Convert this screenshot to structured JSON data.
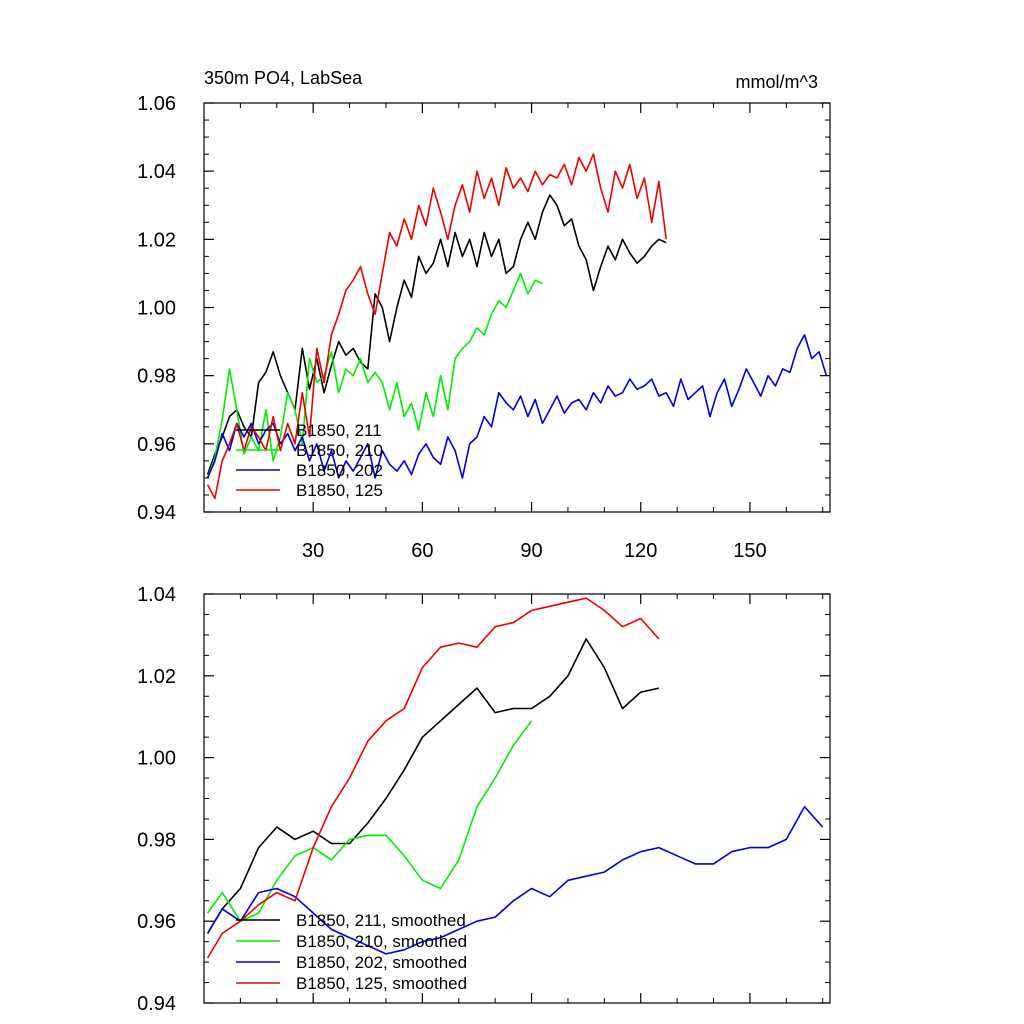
{
  "chart_data": [
    {
      "type": "line",
      "title": "350m PO4, LabSea",
      "units": "mmol/m^3",
      "xlim": [
        0,
        172
      ],
      "ylim": [
        0.94,
        1.06
      ],
      "xticks": [
        30,
        60,
        90,
        120,
        150
      ],
      "xtick_labels": [
        "30",
        "60",
        "90",
        "120",
        "150"
      ],
      "yticks": [
        0.94,
        0.96,
        0.98,
        1.0,
        1.02,
        1.04,
        1.06
      ],
      "ytick_labels": [
        "0.94",
        "0.96",
        "0.98",
        "1.00",
        "1.02",
        "1.04",
        "1.06"
      ],
      "legend_position": "lower-left",
      "series": [
        {
          "name": "B1850, 211",
          "color": "#000000",
          "x": [
            1,
            3,
            5,
            7,
            9,
            11,
            13,
            15,
            17,
            19,
            21,
            23,
            25,
            27,
            29,
            31,
            33,
            35,
            37,
            39,
            41,
            43,
            45,
            47,
            49,
            51,
            53,
            55,
            57,
            59,
            61,
            63,
            65,
            67,
            69,
            71,
            73,
            75,
            77,
            79,
            81,
            83,
            85,
            87,
            89,
            91,
            93,
            95,
            97,
            99,
            101,
            103,
            105,
            107,
            109,
            111,
            113,
            115,
            117,
            119,
            121,
            123,
            125,
            127
          ],
          "y": [
            0.951,
            0.957,
            0.962,
            0.968,
            0.97,
            0.965,
            0.962,
            0.978,
            0.981,
            0.987,
            0.98,
            0.975,
            0.97,
            0.988,
            0.976,
            0.985,
            0.975,
            0.983,
            0.99,
            0.986,
            0.988,
            0.984,
            0.982,
            1.004,
            1.0,
            0.99,
            1.0,
            1.008,
            1.003,
            1.015,
            1.01,
            1.013,
            1.02,
            1.012,
            1.022,
            1.015,
            1.02,
            1.012,
            1.022,
            1.015,
            1.02,
            1.01,
            1.012,
            1.02,
            1.025,
            1.02,
            1.028,
            1.033,
            1.03,
            1.024,
            1.026,
            1.018,
            1.014,
            1.005,
            1.012,
            1.018,
            1.014,
            1.02,
            1.016,
            1.013,
            1.015,
            1.018,
            1.02,
            1.019
          ]
        },
        {
          "name": "B1850, 210",
          "color": "#00ee00",
          "x": [
            1,
            3,
            5,
            7,
            9,
            11,
            13,
            15,
            17,
            19,
            21,
            23,
            25,
            27,
            29,
            31,
            33,
            35,
            37,
            39,
            41,
            43,
            45,
            47,
            49,
            51,
            53,
            55,
            57,
            59,
            61,
            63,
            65,
            67,
            69,
            71,
            73,
            75,
            77,
            79,
            81,
            83,
            85,
            87,
            89,
            91,
            93
          ],
          "y": [
            0.95,
            0.956,
            0.967,
            0.982,
            0.97,
            0.957,
            0.962,
            0.958,
            0.97,
            0.955,
            0.962,
            0.975,
            0.97,
            0.96,
            0.985,
            0.978,
            0.98,
            0.987,
            0.975,
            0.982,
            0.98,
            0.985,
            0.978,
            0.981,
            0.978,
            0.97,
            0.978,
            0.968,
            0.972,
            0.964,
            0.975,
            0.968,
            0.98,
            0.97,
            0.985,
            0.988,
            0.99,
            0.994,
            0.992,
            0.998,
            1.002,
            1.0,
            1.005,
            1.01,
            1.004,
            1.008,
            1.007
          ]
        },
        {
          "name": "B1850, 202",
          "color": "#0000dd",
          "x": [
            1,
            3,
            5,
            7,
            9,
            11,
            13,
            15,
            17,
            19,
            21,
            23,
            25,
            27,
            29,
            31,
            33,
            35,
            37,
            39,
            41,
            43,
            45,
            47,
            49,
            51,
            53,
            55,
            57,
            59,
            61,
            63,
            65,
            67,
            69,
            71,
            73,
            75,
            77,
            79,
            81,
            83,
            85,
            87,
            89,
            91,
            93,
            95,
            97,
            99,
            101,
            103,
            105,
            107,
            109,
            111,
            113,
            115,
            117,
            119,
            121,
            123,
            125,
            127,
            129,
            131,
            133,
            135,
            137,
            139,
            141,
            143,
            145,
            147,
            149,
            151,
            153,
            155,
            157,
            159,
            161,
            163,
            165,
            167,
            169,
            171
          ],
          "y": [
            0.95,
            0.955,
            0.963,
            0.958,
            0.966,
            0.962,
            0.966,
            0.96,
            0.964,
            0.966,
            0.96,
            0.963,
            0.958,
            0.962,
            0.955,
            0.96,
            0.952,
            0.958,
            0.95,
            0.955,
            0.952,
            0.956,
            0.96,
            0.95,
            0.958,
            0.954,
            0.952,
            0.955,
            0.951,
            0.957,
            0.96,
            0.956,
            0.954,
            0.962,
            0.958,
            0.95,
            0.96,
            0.962,
            0.968,
            0.965,
            0.975,
            0.972,
            0.97,
            0.974,
            0.968,
            0.973,
            0.966,
            0.97,
            0.974,
            0.969,
            0.972,
            0.973,
            0.97,
            0.975,
            0.972,
            0.977,
            0.974,
            0.975,
            0.979,
            0.976,
            0.977,
            0.979,
            0.974,
            0.975,
            0.971,
            0.979,
            0.973,
            0.975,
            0.977,
            0.968,
            0.975,
            0.979,
            0.971,
            0.976,
            0.982,
            0.978,
            0.974,
            0.98,
            0.977,
            0.982,
            0.981,
            0.988,
            0.992,
            0.985,
            0.987,
            0.98
          ]
        },
        {
          "name": "B1850, 125",
          "color": "#ee0000",
          "x": [
            1,
            3,
            5,
            7,
            9,
            11,
            13,
            15,
            17,
            19,
            21,
            23,
            25,
            27,
            29,
            31,
            33,
            35,
            37,
            39,
            41,
            43,
            45,
            47,
            49,
            51,
            53,
            55,
            57,
            59,
            61,
            63,
            65,
            67,
            69,
            71,
            73,
            75,
            77,
            79,
            81,
            83,
            85,
            87,
            89,
            91,
            93,
            95,
            97,
            99,
            101,
            103,
            105,
            107,
            109,
            111,
            113,
            115,
            117,
            119,
            121,
            123,
            125,
            127
          ],
          "y": [
            0.948,
            0.944,
            0.955,
            0.96,
            0.966,
            0.958,
            0.965,
            0.962,
            0.958,
            0.968,
            0.958,
            0.966,
            0.96,
            0.975,
            0.962,
            0.988,
            0.978,
            0.992,
            0.998,
            1.005,
            1.008,
            1.012,
            1.004,
            0.998,
            1.01,
            1.022,
            1.018,
            1.026,
            1.02,
            1.03,
            1.024,
            1.035,
            1.028,
            1.02,
            1.03,
            1.036,
            1.028,
            1.04,
            1.032,
            1.038,
            1.03,
            1.041,
            1.035,
            1.038,
            1.034,
            1.04,
            1.036,
            1.039,
            1.038,
            1.042,
            1.036,
            1.044,
            1.04,
            1.045,
            1.035,
            1.028,
            1.04,
            1.035,
            1.042,
            1.032,
            1.038,
            1.025,
            1.037,
            1.02
          ]
        }
      ]
    },
    {
      "type": "line",
      "xlim": [
        0,
        172
      ],
      "ylim": [
        0.94,
        1.04
      ],
      "xticks": [
        30,
        60,
        90,
        120,
        150
      ],
      "yticks": [
        0.94,
        0.96,
        0.98,
        1.0,
        1.02,
        1.04
      ],
      "ytick_labels": [
        "0.94",
        "0.96",
        "0.98",
        "1.00",
        "1.02",
        "1.04"
      ],
      "legend_position": "lower-left",
      "series": [
        {
          "name": "B1850, 211, smoothed",
          "color": "#000000",
          "x": [
            1,
            5,
            10,
            15,
            20,
            25,
            30,
            35,
            40,
            45,
            50,
            55,
            60,
            65,
            70,
            75,
            80,
            85,
            90,
            95,
            100,
            105,
            110,
            115,
            120,
            125
          ],
          "y": [
            0.957,
            0.963,
            0.968,
            0.978,
            0.983,
            0.98,
            0.982,
            0.979,
            0.979,
            0.984,
            0.99,
            0.997,
            1.005,
            1.009,
            1.013,
            1.017,
            1.011,
            1.012,
            1.012,
            1.015,
            1.02,
            1.029,
            1.022,
            1.012,
            1.016,
            1.017
          ]
        },
        {
          "name": "B1850, 210, smoothed",
          "color": "#00ee00",
          "x": [
            1,
            5,
            10,
            15,
            20,
            25,
            30,
            35,
            40,
            45,
            50,
            55,
            60,
            65,
            70,
            75,
            80,
            85,
            90
          ],
          "y": [
            0.962,
            0.967,
            0.96,
            0.962,
            0.97,
            0.976,
            0.978,
            0.975,
            0.98,
            0.981,
            0.981,
            0.976,
            0.97,
            0.968,
            0.975,
            0.988,
            0.995,
            1.003,
            1.009
          ]
        },
        {
          "name": "B1850, 202, smoothed",
          "color": "#0000dd",
          "x": [
            1,
            5,
            10,
            15,
            20,
            25,
            30,
            35,
            40,
            45,
            50,
            55,
            60,
            65,
            70,
            75,
            80,
            85,
            90,
            95,
            100,
            105,
            110,
            115,
            120,
            125,
            130,
            135,
            140,
            145,
            150,
            155,
            160,
            165,
            170
          ],
          "y": [
            0.957,
            0.963,
            0.96,
            0.967,
            0.968,
            0.966,
            0.962,
            0.958,
            0.956,
            0.954,
            0.952,
            0.953,
            0.955,
            0.956,
            0.958,
            0.96,
            0.961,
            0.965,
            0.968,
            0.966,
            0.97,
            0.971,
            0.972,
            0.975,
            0.977,
            0.978,
            0.976,
            0.974,
            0.974,
            0.977,
            0.978,
            0.978,
            0.98,
            0.988,
            0.983
          ]
        },
        {
          "name": "B1850, 125, smoothed",
          "color": "#ee0000",
          "x": [
            1,
            5,
            10,
            15,
            20,
            25,
            30,
            35,
            40,
            45,
            50,
            55,
            60,
            65,
            70,
            75,
            80,
            85,
            90,
            95,
            100,
            105,
            110,
            115,
            120,
            125
          ],
          "y": [
            0.951,
            0.957,
            0.96,
            0.964,
            0.967,
            0.965,
            0.978,
            0.988,
            0.995,
            1.004,
            1.009,
            1.012,
            1.022,
            1.027,
            1.028,
            1.027,
            1.032,
            1.033,
            1.036,
            1.037,
            1.038,
            1.039,
            1.036,
            1.032,
            1.034,
            1.029
          ]
        }
      ]
    }
  ]
}
